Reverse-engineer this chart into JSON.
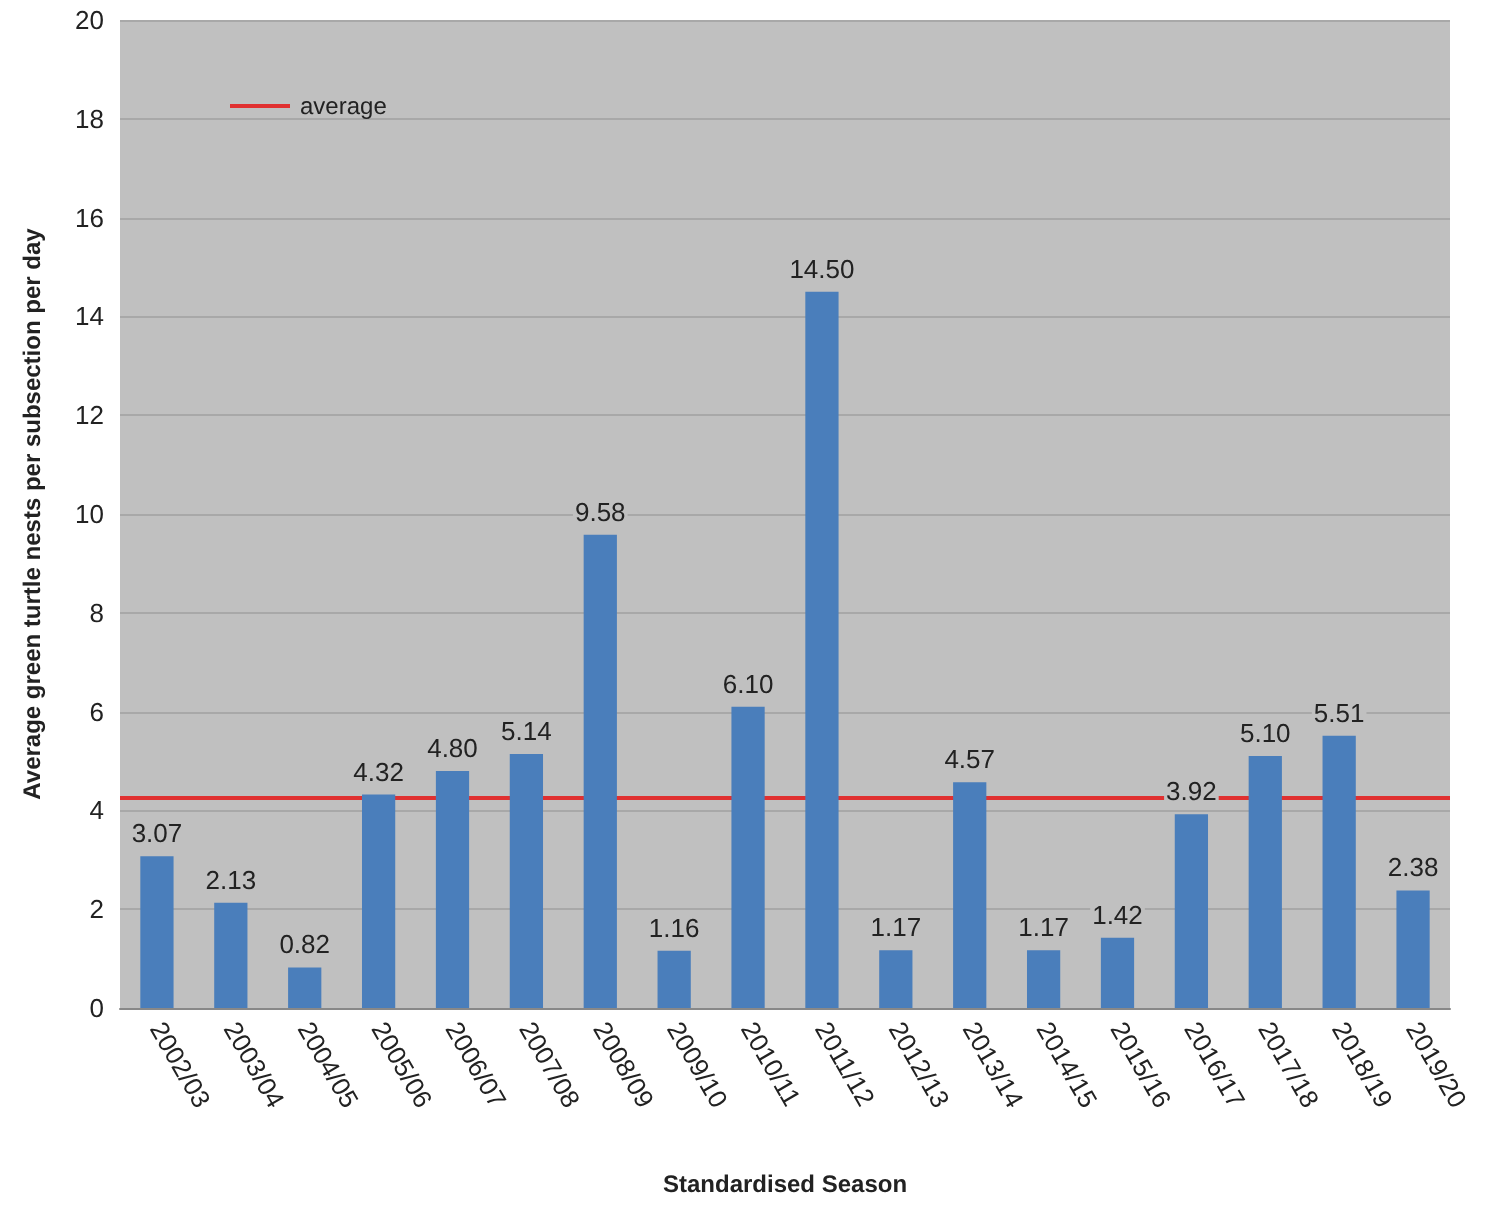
{
  "chart_data": {
    "type": "bar",
    "xlabel": "Standardised Season",
    "ylabel": "Average green turtle nests per subsection per day",
    "categories": [
      "2002/03",
      "2003/04",
      "2004/05",
      "2005/06",
      "2006/07",
      "2007/08",
      "2008/09",
      "2009/10",
      "2010/11",
      "2011/12",
      "2012/13",
      "2013/14",
      "2014/15",
      "2015/16",
      "2016/17",
      "2017/18",
      "2018/19",
      "2019/20"
    ],
    "values": [
      3.07,
      2.13,
      0.82,
      4.32,
      4.8,
      5.14,
      9.58,
      1.16,
      6.1,
      14.5,
      1.17,
      4.57,
      1.17,
      1.42,
      3.92,
      5.1,
      5.51,
      2.38
    ],
    "value_labels": [
      "3.07",
      "2.13",
      "0.82",
      "4.32",
      "4.80",
      "5.14",
      "9.58",
      "1.16",
      "6.10",
      "14.50",
      "1.17",
      "4.57",
      "1.17",
      "1.42",
      "3.92",
      "5.10",
      "5.51",
      "2.38"
    ],
    "color": "#4a7ebb",
    "ylim": [
      0,
      20
    ],
    "yticks": [
      0,
      2,
      4,
      6,
      8,
      10,
      12,
      14,
      16,
      18,
      20
    ],
    "grid": "y",
    "legend": "top left",
    "ref_lines": [
      {
        "axis": "y",
        "value": 4.27,
        "label": "average",
        "color": "#e03030"
      }
    ]
  }
}
